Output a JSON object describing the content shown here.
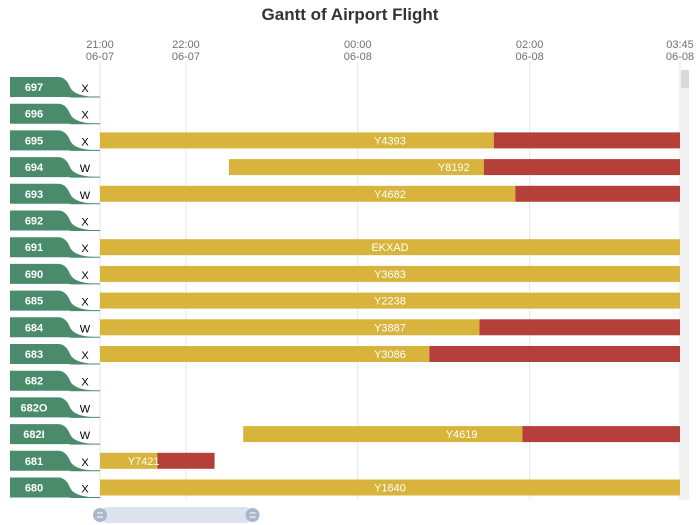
{
  "chart_data": {
    "type": "gantt",
    "title": "Gantt of Airport Flight",
    "time_axis": {
      "start": "2017-06-07 21:00",
      "end": "2017-06-08 03:45",
      "ticks": [
        {
          "time": "2017-06-07 21:00",
          "label": [
            "21:00",
            "06-07"
          ]
        },
        {
          "time": "2017-06-07 22:00",
          "label": [
            "22:00",
            "06-07"
          ]
        },
        {
          "time": "2017-06-08 00:00",
          "label": [
            "00:00",
            "06-08"
          ]
        },
        {
          "time": "2017-06-08 02:00",
          "label": [
            "02:00",
            "06-08"
          ]
        },
        {
          "time": "2017-06-08 03:45",
          "label": [
            "03:45",
            "06-08"
          ]
        }
      ],
      "grid": true
    },
    "colors": {
      "row_label_bg": "#4a8b6c",
      "bar_primary": "#d9b43c",
      "bar_secondary": "#b5403a",
      "grid": "#e6e6e6",
      "slider_track": "#dde3ee",
      "slider_handle": "#a7b7cc"
    },
    "rows": [
      {
        "id": "697",
        "type": "X",
        "bars": []
      },
      {
        "id": "696",
        "type": "X",
        "bars": []
      },
      {
        "id": "695",
        "type": "X",
        "bars": [
          {
            "label": "Y4393",
            "start": "2017-06-07 21:00",
            "split": "2017-06-08 01:35",
            "end": "2017-06-08 03:45"
          }
        ]
      },
      {
        "id": "694",
        "type": "W",
        "bars": [
          {
            "label": "Y8192",
            "start": "2017-06-07 22:30",
            "split": "2017-06-08 01:28",
            "end": "2017-06-08 03:45"
          }
        ]
      },
      {
        "id": "693",
        "type": "W",
        "bars": [
          {
            "label": "Y4682",
            "start": "2017-06-07 21:00",
            "split": "2017-06-08 01:50",
            "end": "2017-06-08 03:45"
          }
        ]
      },
      {
        "id": "692",
        "type": "X",
        "bars": []
      },
      {
        "id": "691",
        "type": "X",
        "bars": [
          {
            "label": "EKXAD",
            "start": "2017-06-07 21:00",
            "split": null,
            "end": "2017-06-08 03:45"
          }
        ]
      },
      {
        "id": "690",
        "type": "X",
        "bars": [
          {
            "label": "Y3683",
            "start": "2017-06-07 21:00",
            "split": null,
            "end": "2017-06-08 03:45"
          }
        ]
      },
      {
        "id": "685",
        "type": "X",
        "bars": [
          {
            "label": "Y2238",
            "start": "2017-06-07 21:00",
            "split": null,
            "end": "2017-06-08 03:45"
          }
        ]
      },
      {
        "id": "684",
        "type": "W",
        "bars": [
          {
            "label": "Y3887",
            "start": "2017-06-07 21:00",
            "split": "2017-06-08 01:25",
            "end": "2017-06-08 03:45"
          }
        ]
      },
      {
        "id": "683",
        "type": "X",
        "bars": [
          {
            "label": "Y3086",
            "start": "2017-06-07 21:00",
            "split": "2017-06-08 00:50",
            "end": "2017-06-08 03:45"
          }
        ]
      },
      {
        "id": "682",
        "type": "X",
        "bars": []
      },
      {
        "id": "682O",
        "type": "W",
        "bars": []
      },
      {
        "id": "682I",
        "type": "W",
        "bars": [
          {
            "label": "Y4619",
            "start": "2017-06-07 22:40",
            "split": "2017-06-08 01:55",
            "end": "2017-06-08 03:45"
          }
        ]
      },
      {
        "id": "681",
        "type": "X",
        "bars": [
          {
            "label": "Y7421",
            "start": "2017-06-07 21:00",
            "split": "2017-06-07 21:40",
            "end": "2017-06-07 22:20"
          }
        ]
      },
      {
        "id": "680",
        "type": "X",
        "bars": [
          {
            "label": "Y1640",
            "start": "2017-06-07 21:00",
            "split": null,
            "end": "2017-06-08 03:45"
          }
        ]
      }
    ],
    "zoom": {
      "start_fraction": 0.0,
      "end_fraction": 0.27
    }
  }
}
